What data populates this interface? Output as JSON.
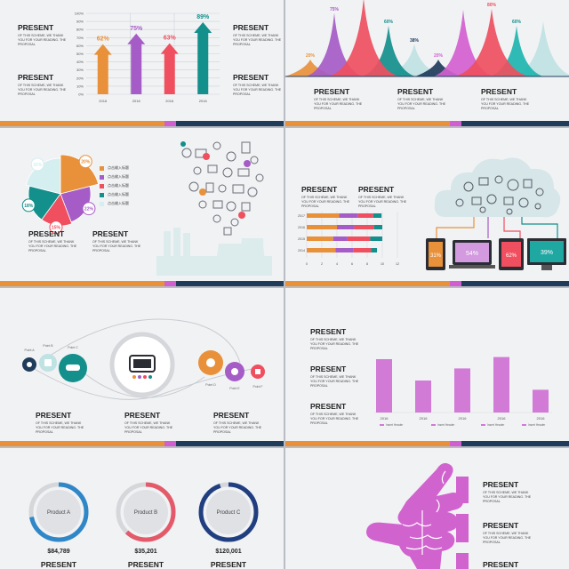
{
  "present_title": "PRESENT",
  "present_desc": "OF THIS SCHEME, WE THANK YOU FOR YOUR READING. THE PROPOSAL",
  "colors": {
    "orange": "#e8913a",
    "purple": "#a55cc6",
    "red": "#ef4f5e",
    "teal": "#138f8c",
    "navy": "#203c5b",
    "pink": "#d25fcf",
    "light": "#bfe2e3",
    "blue": "#2f87c8"
  },
  "slide1": {
    "chart_data": {
      "type": "bar",
      "categories": [
        "2016",
        "2016",
        "2016",
        "2016"
      ],
      "values": [
        62,
        75,
        63,
        89
      ],
      "value_labels": [
        "62%",
        "75%",
        "63%",
        "89%"
      ],
      "ylim": [
        0,
        100
      ],
      "y_ticks": [
        "0%",
        "10%",
        "20%",
        "30%",
        "40%",
        "50%",
        "60%",
        "70%",
        "80%",
        "90%",
        "100%"
      ]
    }
  },
  "slide2": {
    "chart_data": {
      "type": "area",
      "values": [
        20,
        75,
        60,
        38,
        20,
        80,
        60
      ],
      "value_labels": [
        "20%",
        "75%",
        "60%",
        "38%",
        "20%",
        "80%",
        "60%"
      ]
    }
  },
  "slide3": {
    "chart_data": {
      "type": "pie",
      "values": [
        20,
        22,
        15,
        18,
        20
      ],
      "value_labels": [
        "20%",
        "22%",
        "15%",
        "18%",
        "20%"
      ],
      "legend": [
        "点击输入标题",
        "点击输入标题",
        "点击输入标题",
        "点击输入标题",
        "点击输入标题"
      ]
    }
  },
  "slide4": {
    "chart_data": {
      "type": "bar",
      "orientation": "horizontal",
      "categories": [
        "2017",
        "2016",
        "2015",
        "2014"
      ],
      "x_ticks": [
        "0",
        "2",
        "4",
        "6",
        "8",
        "10",
        "12"
      ],
      "xlim": [
        0,
        12
      ],
      "segments": [
        [
          4.3,
          2.5,
          2.0,
          1.1
        ],
        [
          4.0,
          2.3,
          2.6,
          1.1
        ],
        [
          3.5,
          1.9,
          3.0,
          1.6
        ],
        [
          3.8,
          2.4,
          2.3,
          0.8
        ]
      ]
    },
    "device_labels": [
      "31%",
      "54%",
      "62%",
      "39%"
    ]
  },
  "slide5": {
    "small_labels": [
      "Point A",
      "Point B",
      "Point C",
      "Point D",
      "Point E",
      "Point F"
    ]
  },
  "slide6": {
    "chart_data": {
      "type": "bar",
      "categories": [
        "2016",
        "2016",
        "2016",
        "2016",
        "2016"
      ],
      "values": [
        75,
        45,
        62,
        78,
        32
      ],
      "legend": [
        "Insert Header",
        "Insert Header"
      ]
    }
  },
  "slide7": {
    "products": [
      {
        "name": "Product A",
        "price": "$84,789"
      },
      {
        "name": "Product B",
        "price": "$35,201"
      },
      {
        "name": "Product C",
        "price": "$120,001"
      }
    ]
  }
}
